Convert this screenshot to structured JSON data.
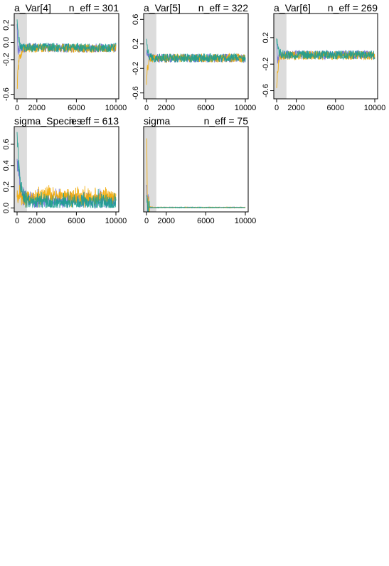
{
  "chart_data": [
    {
      "type": "line",
      "title": "a_Var[4]",
      "annotation": "n_eff = 301",
      "xlim": [
        0,
        10000
      ],
      "ylim": [
        -0.62,
        0.3
      ],
      "xticks": [
        0,
        2000,
        6000,
        10000
      ],
      "yticks": [
        -0.6,
        -0.2,
        0.0,
        0.2
      ],
      "warmup_end": 1000,
      "series": [
        {
          "color": "#6b6bd6",
          "x": [
            0,
            100,
            300,
            600,
            1000,
            3000,
            6000,
            10000
          ],
          "y": [
            0.2,
            -0.1,
            -0.05,
            -0.07,
            -0.06,
            -0.06,
            -0.07,
            -0.06
          ]
        },
        {
          "color": "#f2a900",
          "x": [
            0,
            100,
            300,
            600,
            1000,
            3000,
            6000,
            10000
          ],
          "y": [
            -0.55,
            -0.3,
            -0.15,
            -0.08,
            -0.07,
            -0.06,
            -0.07,
            -0.07
          ]
        },
        {
          "color": "#1a9e8f",
          "x": [
            0,
            100,
            300,
            600,
            1000,
            3000,
            6000,
            10000
          ],
          "y": [
            0.25,
            0.1,
            -0.05,
            -0.06,
            -0.06,
            -0.06,
            -0.06,
            -0.06
          ]
        }
      ]
    },
    {
      "type": "line",
      "title": "a_Var[5]",
      "annotation": "n_eff = 322",
      "xlim": [
        0,
        10000
      ],
      "ylim": [
        -0.65,
        0.65
      ],
      "xticks": [
        0,
        2000,
        6000,
        10000
      ],
      "yticks": [
        -0.6,
        -0.2,
        0.2,
        0.6
      ],
      "warmup_end": 1000,
      "series": [
        {
          "color": "#6b6bd6",
          "x": [
            0,
            100,
            300,
            600,
            1000,
            3000,
            6000,
            10000
          ],
          "y": [
            0.1,
            0.0,
            -0.02,
            -0.03,
            -0.03,
            -0.03,
            -0.03,
            -0.03
          ]
        },
        {
          "color": "#f2a900",
          "x": [
            0,
            100,
            300,
            600,
            1000,
            3000,
            6000,
            10000
          ],
          "y": [
            -0.4,
            -0.2,
            -0.05,
            -0.03,
            -0.03,
            -0.03,
            -0.03,
            -0.03
          ]
        },
        {
          "color": "#1a9e8f",
          "x": [
            0,
            100,
            300,
            600,
            1000,
            3000,
            6000,
            10000
          ],
          "y": [
            0.35,
            0.1,
            0.0,
            -0.03,
            -0.03,
            -0.03,
            -0.03,
            -0.03
          ]
        }
      ]
    },
    {
      "type": "line",
      "title": "a_Var[6]",
      "annotation": "n_eff = 269",
      "xlim": [
        0,
        10000
      ],
      "ylim": [
        -0.68,
        0.52
      ],
      "xticks": [
        0,
        2000,
        6000,
        10000
      ],
      "yticks": [
        -0.6,
        -0.2,
        0.2
      ],
      "warmup_end": 1000,
      "series": [
        {
          "color": "#6b6bd6",
          "x": [
            0,
            100,
            300,
            600,
            1000,
            3000,
            6000,
            10000
          ],
          "y": [
            0.1,
            -0.15,
            -0.08,
            -0.06,
            -0.06,
            -0.06,
            -0.06,
            -0.06
          ]
        },
        {
          "color": "#f2a900",
          "x": [
            0,
            100,
            300,
            600,
            1000,
            3000,
            6000,
            10000
          ],
          "y": [
            -0.55,
            -0.3,
            -0.1,
            -0.07,
            -0.07,
            -0.07,
            -0.07,
            -0.07
          ]
        },
        {
          "color": "#1a9e8f",
          "x": [
            0,
            100,
            300,
            600,
            1000,
            3000,
            6000,
            10000
          ],
          "y": [
            0.2,
            0.05,
            -0.03,
            -0.05,
            -0.06,
            -0.06,
            -0.06,
            -0.06
          ]
        }
      ]
    },
    {
      "type": "line",
      "title": "sigma_Species",
      "annotation": "n_eff = 613",
      "xlim": [
        0,
        10000
      ],
      "ylim": [
        -0.01,
        0.74
      ],
      "xticks": [
        0,
        2000,
        6000,
        10000
      ],
      "yticks": [
        0.0,
        0.2,
        0.4,
        0.6
      ],
      "warmup_end": 1000,
      "series": [
        {
          "color": "#6b6bd6",
          "x": [
            0,
            100,
            300,
            600,
            1000,
            3000,
            6000,
            10000
          ],
          "y": [
            0.5,
            0.4,
            0.2,
            0.1,
            0.08,
            0.07,
            0.08,
            0.07
          ]
        },
        {
          "color": "#f2a900",
          "x": [
            0,
            100,
            300,
            600,
            1000,
            3000,
            6000,
            10000
          ],
          "y": [
            0.05,
            0.1,
            0.12,
            0.09,
            0.1,
            0.12,
            0.1,
            0.11
          ]
        },
        {
          "color": "#1a9e8f",
          "x": [
            0,
            100,
            300,
            600,
            1000,
            3000,
            6000,
            10000
          ],
          "y": [
            0.7,
            0.5,
            0.25,
            0.1,
            0.06,
            0.05,
            0.06,
            0.05
          ]
        }
      ]
    },
    {
      "type": "line",
      "title": "sigma",
      "annotation": "n_eff = 75",
      "xlim": [
        0,
        10000
      ],
      "ylim": [
        0.0,
        1.0
      ],
      "xticks": [
        0,
        2000,
        6000,
        10000
      ],
      "yticks": [],
      "warmup_end": 1000,
      "series": [
        {
          "color": "#6b6bd6",
          "x": [
            0,
            100,
            300,
            600,
            1000,
            3000,
            6000,
            10000
          ],
          "y": [
            0.4,
            0.05,
            0.02,
            0.02,
            0.02,
            0.02,
            0.02,
            0.02
          ]
        },
        {
          "color": "#f2a900",
          "x": [
            0,
            100,
            300,
            600,
            1000,
            3000,
            6000,
            10000
          ],
          "y": [
            0.98,
            0.1,
            0.03,
            0.02,
            0.02,
            0.02,
            0.02,
            0.02
          ]
        },
        {
          "color": "#1a9e8f",
          "x": [
            0,
            100,
            300,
            600,
            1000,
            3000,
            6000,
            10000
          ],
          "y": [
            0.25,
            0.03,
            0.02,
            0.02,
            0.02,
            0.02,
            0.02,
            0.02
          ]
        }
      ]
    }
  ]
}
